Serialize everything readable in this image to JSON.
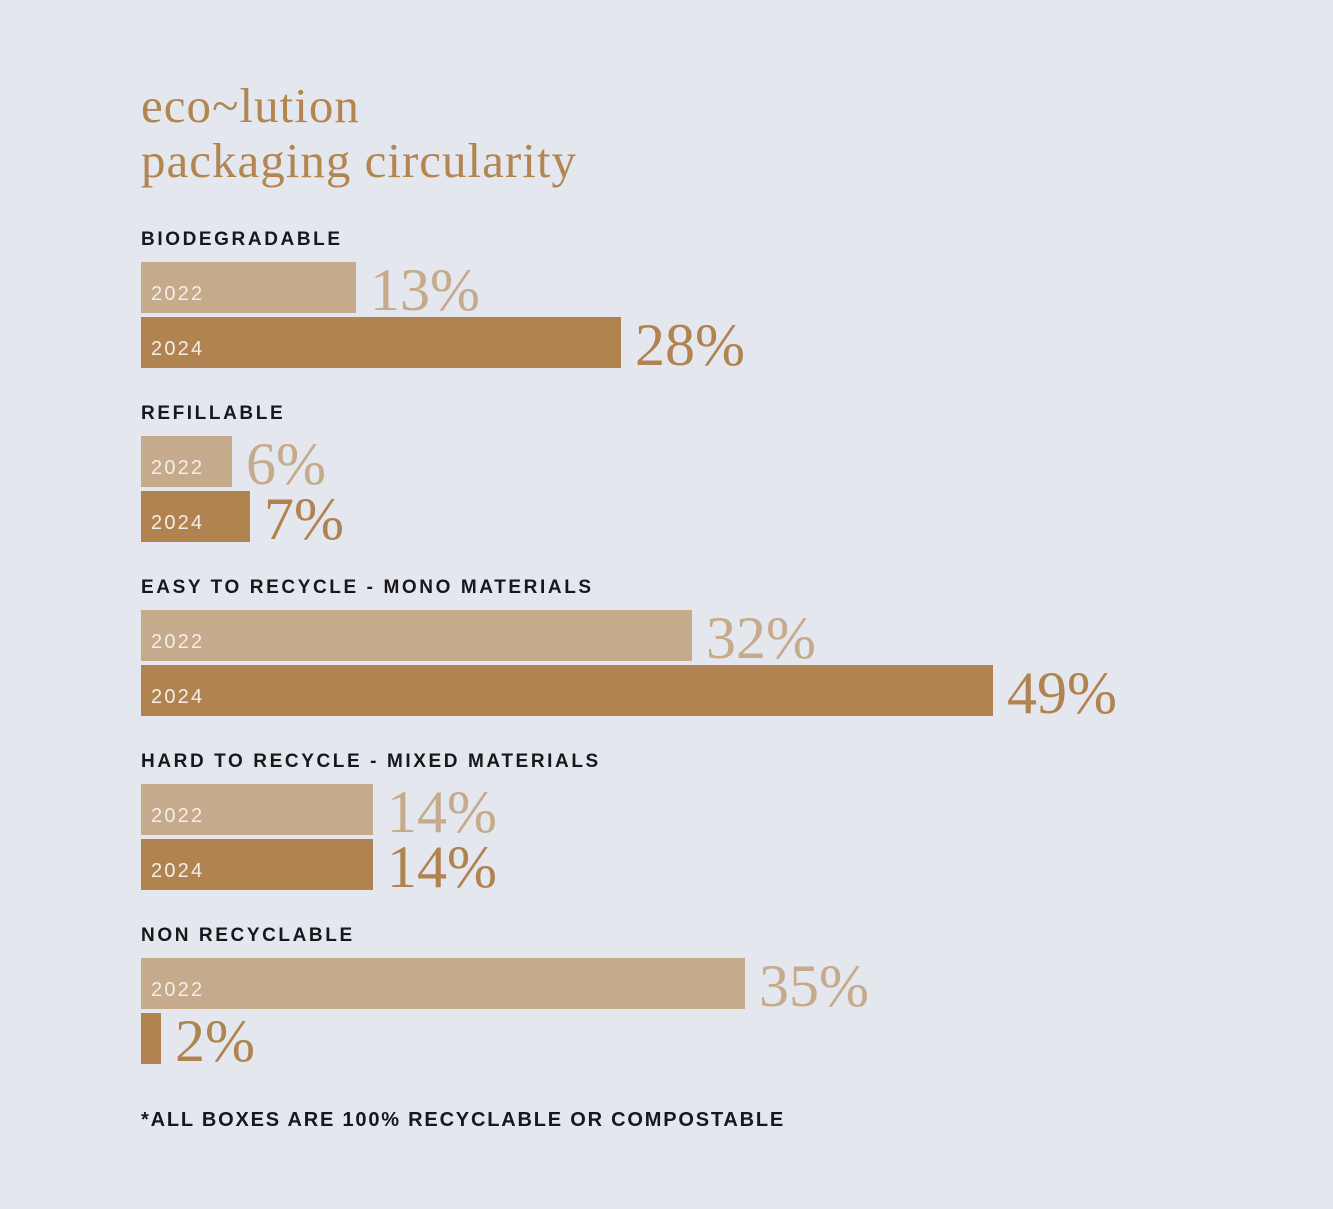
{
  "page": {
    "background_color": "#e5e7ee"
  },
  "title": {
    "line1": "eco~lution",
    "line2": "packaging circularity",
    "color": "#b28551"
  },
  "footnote": "*ALL BOXES ARE 100% RECYCLABLE OR COMPOSTABLE",
  "colors": {
    "bar_2022": "#c5aa8c",
    "bar_2024": "#b08350",
    "value_label_2022": "#c5aa8c",
    "value_label_2024": "#b08350",
    "category_text": "#17171c",
    "year_text": "#f3efe8"
  },
  "chart_data": {
    "type": "bar",
    "orientation": "horizontal",
    "title": "eco~lution packaging circularity",
    "categories": [
      "BIODEGRADABLE",
      "REFILLABLE",
      "EASY TO RECYCLE - MONO MATERIALS",
      "HARD TO RECYCLE - MIXED MATERIALS",
      "NON RECYCLABLE"
    ],
    "series": [
      {
        "name": "2022",
        "values": [
          13,
          6,
          32,
          14,
          35
        ]
      },
      {
        "name": "2024",
        "values": [
          28,
          7,
          49,
          14,
          2
        ]
      }
    ],
    "unit": "%",
    "value_labels_shown": true,
    "xlim": [
      0,
      55
    ],
    "grid": false,
    "legend_position": "inside-bars"
  }
}
